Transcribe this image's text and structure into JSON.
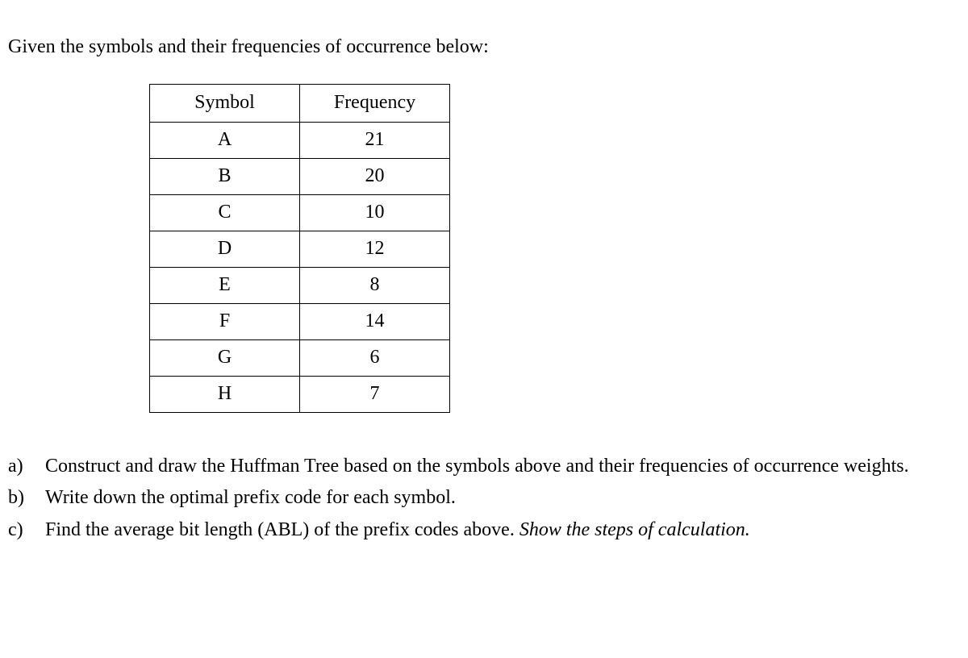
{
  "intro": "Given the symbols and their frequencies of occurrence below:",
  "table": {
    "columns": [
      "Symbol",
      "Frequency"
    ],
    "rows": [
      [
        "A",
        "21"
      ],
      [
        "B",
        "20"
      ],
      [
        "C",
        "10"
      ],
      [
        "D",
        "12"
      ],
      [
        "E",
        "8"
      ],
      [
        "F",
        "14"
      ],
      [
        "G",
        "6"
      ],
      [
        "H",
        "7"
      ]
    ]
  },
  "questions": {
    "a": {
      "label": "a)",
      "text": "Construct and draw the Huffman Tree based on the symbols above and their frequencies of occurrence weights."
    },
    "b": {
      "label": "b)",
      "text": "Write down the optimal prefix code for each symbol."
    },
    "c": {
      "label": "c)",
      "text_plain": "Find the average bit length (ABL) of the prefix codes above. ",
      "text_italic": "Show the steps of calculation."
    }
  }
}
